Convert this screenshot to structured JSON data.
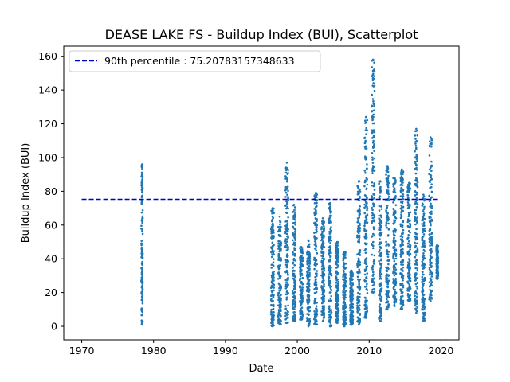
{
  "chart_data": {
    "type": "scatter",
    "title": "DEASE LAKE FS - Buildup Index (BUI), Scatterplot",
    "xlabel": "Date",
    "ylabel": "Buildup Index (BUI)",
    "xlim": [
      1967.5,
      2022.5
    ],
    "ylim": [
      -8,
      166
    ],
    "x_ticks": [
      1970,
      1980,
      1990,
      2000,
      2010,
      2020
    ],
    "y_ticks": [
      0,
      20,
      40,
      60,
      80,
      100,
      120,
      140,
      160
    ],
    "grid": false,
    "legend_position": "top-left",
    "point_color": "#1f77b4",
    "reference_line": {
      "label": "90th percentile : 75.20783157348633",
      "y": 75.20783157348633,
      "x_start": 1970,
      "x_end": 2019.6,
      "color": "#0000cd",
      "style": "dashed"
    },
    "seasons": [
      {
        "year": 1978,
        "start": 1978.3,
        "end": 1978.5,
        "lo": 1,
        "hi": 96
      },
      {
        "year": 1996,
        "start": 1996.35,
        "end": 1996.75,
        "lo": 0,
        "hi": 70
      },
      {
        "year": 1997,
        "start": 1997.35,
        "end": 1997.75,
        "lo": 1,
        "hi": 65
      },
      {
        "year": 1998,
        "start": 1998.35,
        "end": 1998.75,
        "lo": 2,
        "hi": 97
      },
      {
        "year": 1999,
        "start": 1999.35,
        "end": 1999.75,
        "lo": 3,
        "hi": 72
      },
      {
        "year": 2000,
        "start": 2000.35,
        "end": 2000.75,
        "lo": 4,
        "hi": 47
      },
      {
        "year": 2001,
        "start": 2001.35,
        "end": 2001.75,
        "lo": 0,
        "hi": 51
      },
      {
        "year": 2002,
        "start": 2002.35,
        "end": 2002.75,
        "lo": 1,
        "hi": 79
      },
      {
        "year": 2003,
        "start": 2003.35,
        "end": 2003.75,
        "lo": 3,
        "hi": 64
      },
      {
        "year": 2004,
        "start": 2004.35,
        "end": 2004.75,
        "lo": 0,
        "hi": 73
      },
      {
        "year": 2005,
        "start": 2005.35,
        "end": 2005.75,
        "lo": 2,
        "hi": 50
      },
      {
        "year": 2006,
        "start": 2006.35,
        "end": 2006.75,
        "lo": 0,
        "hi": 44
      },
      {
        "year": 2007,
        "start": 2007.35,
        "end": 2007.75,
        "lo": 1,
        "hi": 33
      },
      {
        "year": 2008,
        "start": 2008.35,
        "end": 2008.75,
        "lo": 1,
        "hi": 86
      },
      {
        "year": 2009,
        "start": 2009.35,
        "end": 2009.75,
        "lo": 5,
        "hi": 124
      },
      {
        "year": 2010,
        "start": 2010.35,
        "end": 2010.75,
        "lo": 20,
        "hi": 158
      },
      {
        "year": 2011,
        "start": 2011.35,
        "end": 2011.75,
        "lo": 3,
        "hi": 86
      },
      {
        "year": 2012,
        "start": 2012.35,
        "end": 2012.75,
        "lo": 10,
        "hi": 95
      },
      {
        "year": 2013,
        "start": 2013.35,
        "end": 2013.75,
        "lo": 12,
        "hi": 88
      },
      {
        "year": 2014,
        "start": 2014.35,
        "end": 2014.75,
        "lo": 10,
        "hi": 93
      },
      {
        "year": 2015,
        "start": 2015.35,
        "end": 2015.75,
        "lo": 15,
        "hi": 85
      },
      {
        "year": 2016,
        "start": 2016.35,
        "end": 2016.75,
        "lo": 8,
        "hi": 117
      },
      {
        "year": 2017,
        "start": 2017.35,
        "end": 2017.75,
        "lo": 3,
        "hi": 78
      },
      {
        "year": 2018,
        "start": 2018.35,
        "end": 2018.75,
        "lo": 15,
        "hi": 112
      },
      {
        "year": 2019,
        "start": 2019.35,
        "end": 2019.6,
        "lo": 28,
        "hi": 48
      }
    ]
  }
}
